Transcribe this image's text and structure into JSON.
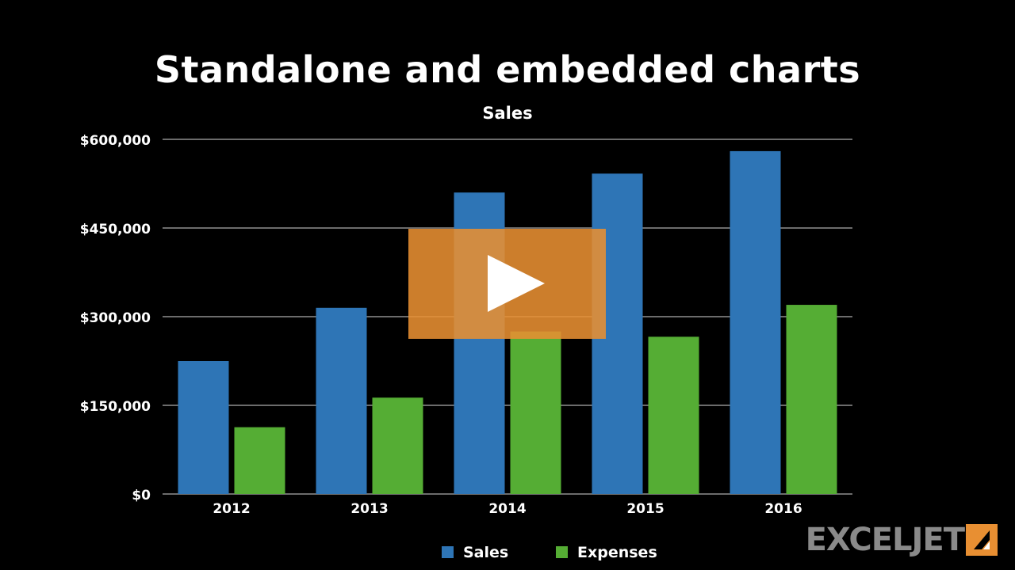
{
  "page": {
    "title": "Standalone and embedded charts"
  },
  "chart_data": {
    "type": "bar",
    "title": "Sales",
    "categories": [
      "2012",
      "2013",
      "2014",
      "2015",
      "2016"
    ],
    "series": [
      {
        "name": "Sales",
        "values": [
          225000,
          315000,
          510000,
          542000,
          580000
        ],
        "color": "#2E75B6"
      },
      {
        "name": "Expenses",
        "values": [
          113000,
          163000,
          275000,
          266000,
          320000
        ],
        "color": "#55AD34"
      }
    ],
    "y_ticks": [
      "$0",
      "$150,000",
      "$300,000",
      "$450,000",
      "$600,000"
    ],
    "ylim": [
      0,
      600000
    ],
    "grid": true,
    "legend_position": "bottom"
  },
  "video": {
    "play_icon": "play-icon",
    "overlay_color": "#E88F32"
  },
  "brand": {
    "name": "EXCELJET",
    "mark_color": "#E88F32"
  }
}
